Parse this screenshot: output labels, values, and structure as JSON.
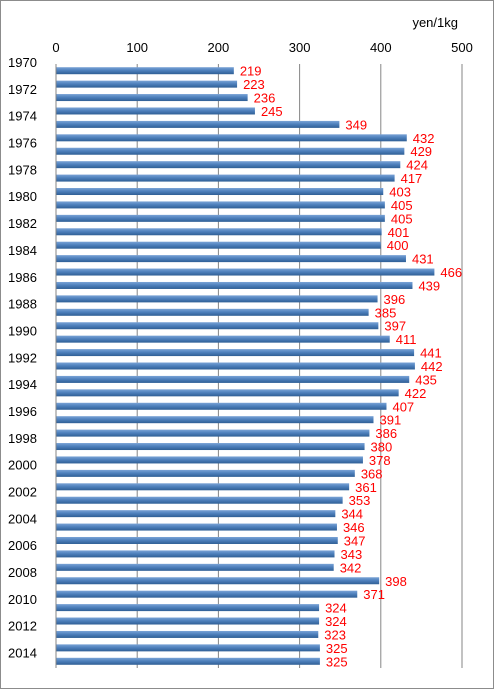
{
  "chart_data": {
    "type": "bar",
    "orientation": "horizontal",
    "unit_label": "yen/1kg",
    "xlim": [
      0,
      500
    ],
    "x_ticks": [
      "0",
      "100",
      "200",
      "300",
      "400",
      "500"
    ],
    "grid": "vertical",
    "bar_color": "#4f81bd",
    "label_color": "#ff0000",
    "categories": [
      "1970",
      "1971",
      "1972",
      "1973",
      "1974",
      "1975",
      "1976",
      "1977",
      "1978",
      "1979",
      "1980",
      "1981",
      "1982",
      "1983",
      "1984",
      "1985",
      "1986",
      "1987",
      "1988",
      "1989",
      "1990",
      "1991",
      "1992",
      "1993",
      "1994",
      "1995",
      "1996",
      "1997",
      "1998",
      "1999",
      "2000",
      "2001",
      "2002",
      "2003",
      "2004",
      "2005",
      "2006",
      "2007",
      "2008",
      "2009",
      "2010",
      "2011",
      "2012",
      "2013",
      "2014"
    ],
    "category_labels_shown": [
      "1970",
      "",
      "1972",
      "",
      "1974",
      "",
      "1976",
      "",
      "1978",
      "",
      "1980",
      "",
      "1982",
      "",
      "1984",
      "",
      "1986",
      "",
      "1988",
      "",
      "1990",
      "",
      "1992",
      "",
      "1994",
      "",
      "1996",
      "",
      "1998",
      "",
      "2000",
      "",
      "2002",
      "",
      "2004",
      "",
      "2006",
      "",
      "2008",
      "",
      "2010",
      "",
      "2012",
      "",
      "2014"
    ],
    "values": [
      219,
      223,
      236,
      245,
      349,
      432,
      429,
      424,
      417,
      403,
      405,
      405,
      401,
      400,
      431,
      466,
      439,
      396,
      385,
      397,
      411,
      441,
      442,
      435,
      422,
      407,
      391,
      386,
      380,
      378,
      368,
      361,
      353,
      344,
      346,
      347,
      343,
      342,
      398,
      371,
      324,
      324,
      323,
      325,
      325
    ]
  }
}
